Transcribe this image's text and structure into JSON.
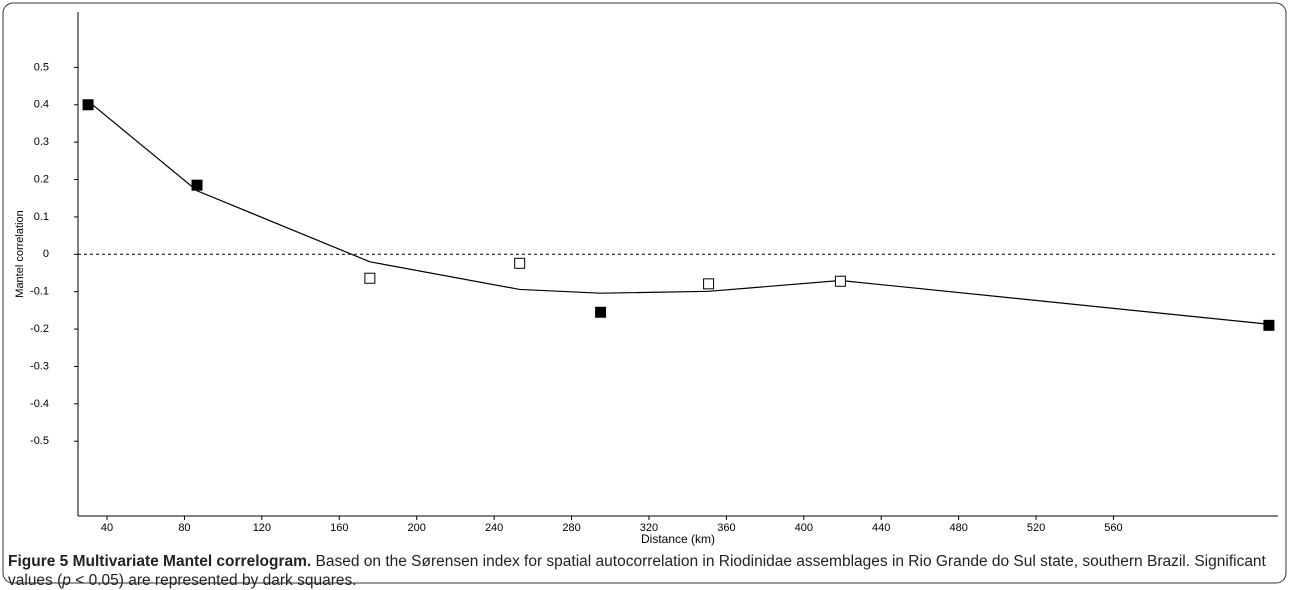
{
  "chart_data": {
    "type": "scatter",
    "x_label": "Distance (km)",
    "y_label": "Mantel correlation",
    "x": [
      30.2,
      86.5,
      175.8,
      253.2,
      295,
      350.8,
      418.9,
      640.3
    ],
    "values": [
      0.4,
      0.185,
      -0.064,
      -0.024,
      -0.155,
      -0.079,
      -0.072,
      -0.19
    ],
    "significant": [
      true,
      true,
      false,
      false,
      true,
      false,
      false,
      true
    ],
    "curve": {
      "x": [
        30.2,
        86.5,
        175.8,
        253.2,
        295,
        350.8,
        418.9,
        640.3
      ],
      "values": [
        0.41,
        0.17,
        -0.02,
        -0.094,
        -0.104,
        -0.099,
        -0.07,
        -0.187
      ]
    },
    "reference_line": 0,
    "xlim": [
      25,
      645
    ],
    "xticks": [
      40,
      80,
      120,
      160,
      200,
      240,
      280,
      320,
      360,
      400,
      440,
      480,
      520,
      560
    ],
    "ylim": [
      -0.7,
      0.6
    ],
    "yticks": [
      0.5,
      0.4,
      0.3,
      0.2,
      0.1,
      0,
      -0.1,
      -0.2,
      -0.3,
      -0.4,
      -0.5
    ],
    "color": "#000000"
  },
  "caption": {
    "label": "Figure 5 Multivariate Mantel correlogram.",
    "text_before": " Based on the Sørensen index for spatial autocorrelation in Riodinidae assemblages in Rio Grande do Sul state, southern Brazil. Significant values (",
    "italic": "p",
    "text_after": " < 0.05) are represented by dark squares."
  }
}
